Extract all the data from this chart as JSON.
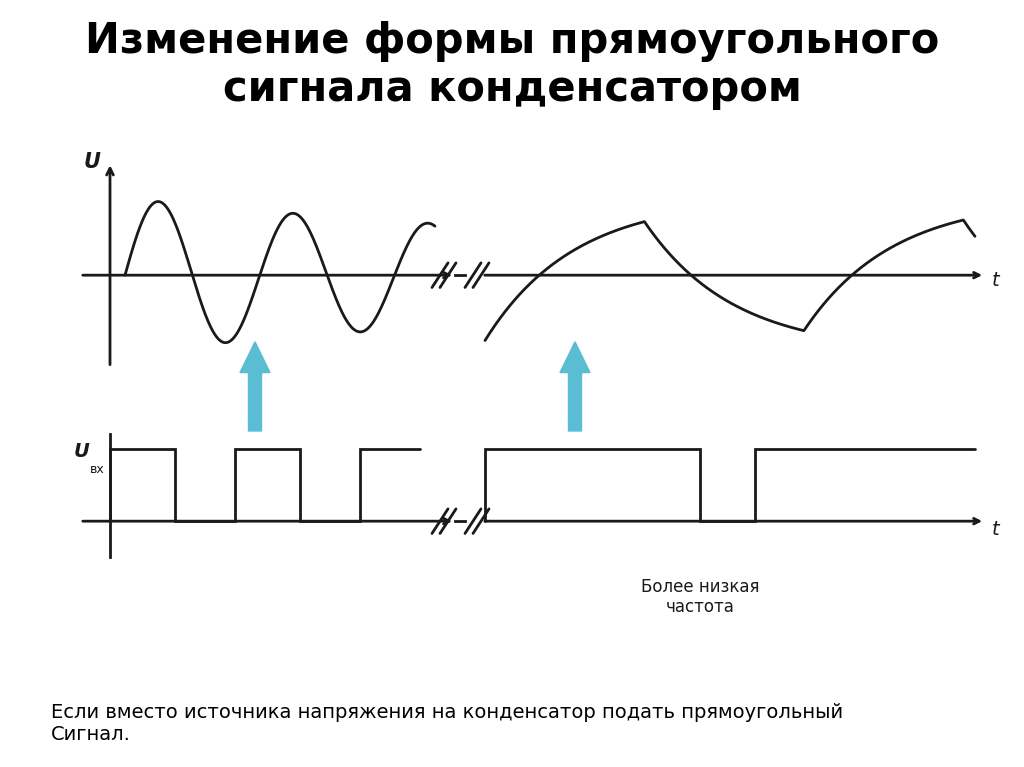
{
  "title": "Изменение формы прямоугольного\nсигнала конденсатором",
  "title_bg_color": "#9ecdd6",
  "bg_color": "#ffffff",
  "title_fontsize": 30,
  "subtitle_text": "Если вместо источника напряжения на конденсатор подать прямоугольный\nСигнал.",
  "subtitle_fontsize": 14,
  "label_U": "U",
  "label_t": "t",
  "arrow_color": "#5bbdd4",
  "line_color": "#1a1a1a",
  "low_freq_label": "Более низкая\nчастота"
}
